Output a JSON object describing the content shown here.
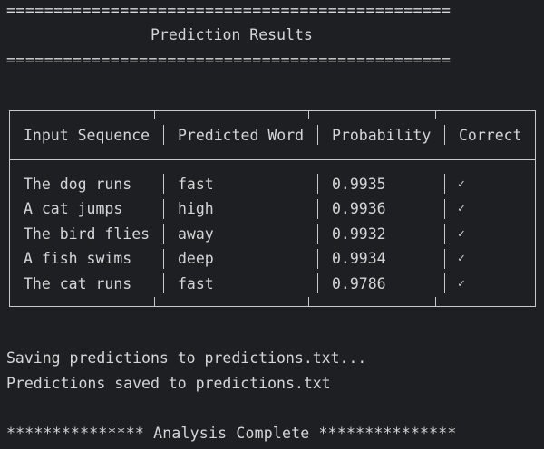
{
  "separator_top": "===============================================",
  "title": "Prediction Results",
  "separator_bottom": "===============================================",
  "table": {
    "headers": [
      "Input Sequence",
      "Predicted Word",
      "Probability",
      "Correct"
    ],
    "rows": [
      {
        "input": "The dog runs",
        "word": "fast",
        "prob": "0.9935",
        "correct": "✓"
      },
      {
        "input": "A cat jumps",
        "word": "high",
        "prob": "0.9936",
        "correct": "✓"
      },
      {
        "input": "The bird flies",
        "word": "away",
        "prob": "0.9932",
        "correct": "✓"
      },
      {
        "input": "A fish swims",
        "word": "deep",
        "prob": "0.9934",
        "correct": "✓"
      },
      {
        "input": "The cat runs",
        "word": "fast",
        "prob": "0.9786",
        "correct": "✓"
      }
    ]
  },
  "saving_message": "Saving predictions to predictions.txt...",
  "saved_message": "Predictions saved to predictions.txt",
  "complete_message": "*************** Analysis Complete ***************"
}
